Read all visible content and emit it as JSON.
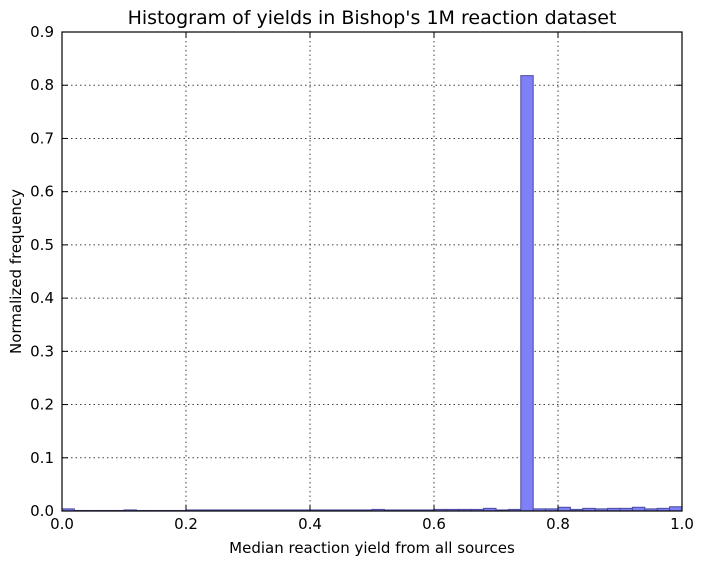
{
  "chart_data": {
    "type": "bar",
    "title": "Histogram of yields in Bishop's 1M reaction dataset",
    "xlabel": "Median reaction yield from all sources",
    "ylabel": "Normalized frequency",
    "xlim": [
      0.0,
      1.0
    ],
    "ylim": [
      0.0,
      0.9
    ],
    "xticks": [
      "0.0",
      "0.2",
      "0.4",
      "0.6",
      "0.8",
      "1.0"
    ],
    "yticks": [
      "0.0",
      "0.1",
      "0.2",
      "0.3",
      "0.4",
      "0.5",
      "0.6",
      "0.7",
      "0.8",
      "0.9"
    ],
    "xtick_values": [
      0.0,
      0.2,
      0.4,
      0.6,
      0.8,
      1.0
    ],
    "ytick_values": [
      0.0,
      0.1,
      0.2,
      0.3,
      0.4,
      0.5,
      0.6,
      0.7,
      0.8,
      0.9
    ],
    "grid": true,
    "bin_width": 0.02,
    "bins_start": [
      0.0,
      0.02,
      0.04,
      0.06,
      0.08,
      0.1,
      0.12,
      0.14,
      0.16,
      0.18,
      0.2,
      0.22,
      0.24,
      0.26,
      0.28,
      0.3,
      0.32,
      0.34,
      0.36,
      0.38,
      0.4,
      0.42,
      0.44,
      0.46,
      0.48,
      0.5,
      0.52,
      0.54,
      0.56,
      0.58,
      0.6,
      0.62,
      0.64,
      0.66,
      0.68,
      0.7,
      0.72,
      0.74,
      0.76,
      0.78,
      0.8,
      0.82,
      0.84,
      0.86,
      0.88,
      0.9,
      0.92,
      0.94,
      0.96,
      0.98
    ],
    "values": [
      0.004,
      0.001,
      0.001,
      0.001,
      0.001,
      0.002,
      0.001,
      0.001,
      0.001,
      0.001,
      0.002,
      0.002,
      0.002,
      0.002,
      0.002,
      0.002,
      0.002,
      0.002,
      0.002,
      0.002,
      0.002,
      0.002,
      0.002,
      0.002,
      0.002,
      0.003,
      0.002,
      0.002,
      0.002,
      0.002,
      0.003,
      0.003,
      0.003,
      0.003,
      0.005,
      0.002,
      0.003,
      0.818,
      0.004,
      0.004,
      0.007,
      0.003,
      0.005,
      0.004,
      0.005,
      0.005,
      0.007,
      0.004,
      0.005,
      0.008
    ],
    "colors": {
      "bar_fill": "#7f7ff7",
      "bar_edge": "#4a4aa0"
    }
  }
}
